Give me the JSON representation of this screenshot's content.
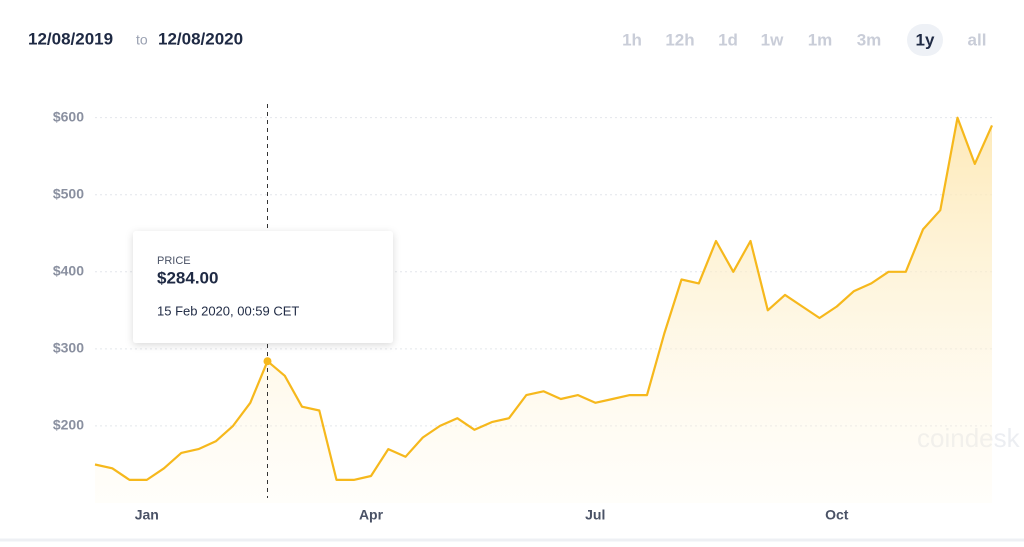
{
  "chart_data": {
    "type": "line",
    "date_from": "12/08/2019",
    "date_sep": "to",
    "date_to": "12/08/2020",
    "range_buttons": [
      "1h",
      "12h",
      "1d",
      "1w",
      "1m",
      "3m",
      "1y",
      "all"
    ],
    "selected_range": "1y",
    "watermark": "coindesk",
    "categories": [
      null,
      null,
      null,
      "Jan",
      null,
      null,
      null,
      null,
      null,
      null,
      null,
      null,
      null,
      null,
      null,
      null,
      "Apr",
      null,
      null,
      null,
      null,
      null,
      null,
      null,
      null,
      null,
      null,
      null,
      null,
      "Jul",
      null,
      null,
      null,
      null,
      null,
      null,
      null,
      null,
      null,
      null,
      null,
      null,
      null,
      "Oct",
      null,
      null,
      null,
      null,
      null,
      null,
      null,
      null,
      null
    ],
    "series": [
      {
        "color": "#f6b81c",
        "values": [
          150,
          145,
          130,
          130,
          145,
          165,
          170,
          180,
          200,
          230,
          284,
          265,
          225,
          220,
          130,
          130,
          135,
          170,
          160,
          185,
          200,
          210,
          195,
          205,
          210,
          240,
          245,
          235,
          240,
          230,
          235,
          240,
          240,
          320,
          390,
          385,
          440,
          400,
          440,
          350,
          370,
          355,
          340,
          355,
          375,
          385,
          400,
          400,
          455,
          480,
          600,
          540,
          590
        ]
      }
    ],
    "ylim": [
      100,
      645
    ],
    "yticks": [
      {
        "value": 200,
        "label": "$200"
      },
      {
        "value": 300,
        "label": "$300"
      },
      {
        "value": 400,
        "label": "$400"
      },
      {
        "value": 500,
        "label": "$500"
      },
      {
        "value": 600,
        "label": "$600"
      }
    ],
    "grid": true,
    "tooltip": {
      "index": 10,
      "label": "PRICE",
      "value": 284,
      "value_label": "$284.00",
      "time": "15 Feb 2020, 00:59 CET"
    }
  }
}
